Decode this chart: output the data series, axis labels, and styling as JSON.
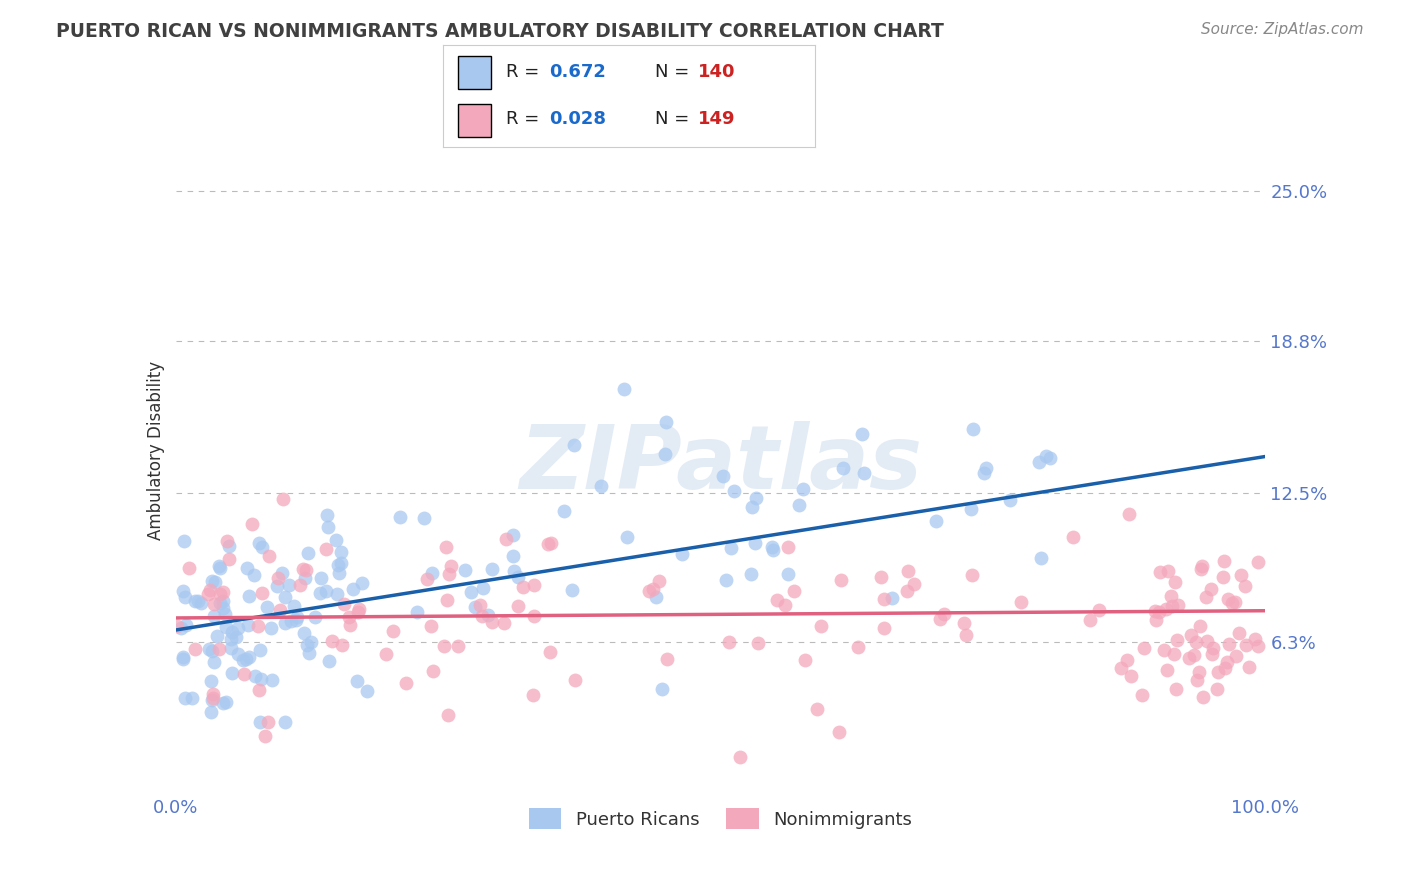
{
  "title": "PUERTO RICAN VS NONIMMIGRANTS AMBULATORY DISABILITY CORRELATION CHART",
  "source_text": "Source: ZipAtlas.com",
  "ylabel": "Ambulatory Disability",
  "ytick_labels": [
    "6.3%",
    "12.5%",
    "18.8%",
    "25.0%"
  ],
  "ytick_values": [
    0.063,
    0.125,
    0.188,
    0.25
  ],
  "xtick_labels": [
    "0.0%",
    "100.0%"
  ],
  "xlim": [
    0.0,
    1.0
  ],
  "ylim": [
    0.0,
    0.285
  ],
  "blue_R": 0.672,
  "blue_N": 140,
  "pink_R": 0.028,
  "pink_N": 149,
  "blue_color": "#A8C8F0",
  "pink_color": "#F4A8BC",
  "blue_line_color": "#1A5FAA",
  "pink_line_color": "#E06080",
  "legend_label_blue": "Puerto Ricans",
  "legend_label_pink": "Nonimmigrants",
  "watermark": "ZIPatlas",
  "background_color": "#FFFFFF",
  "grid_color": "#BBBBBB",
  "title_color": "#404040",
  "axis_label_color": "#5577CC",
  "legend_text_color": "#333333",
  "legend_R_color": "#1A6ACC",
  "legend_N_color": "#CC2222",
  "blue_line_start_y": 0.068,
  "blue_line_end_y": 0.14,
  "pink_line_start_y": 0.073,
  "pink_line_end_y": 0.076
}
